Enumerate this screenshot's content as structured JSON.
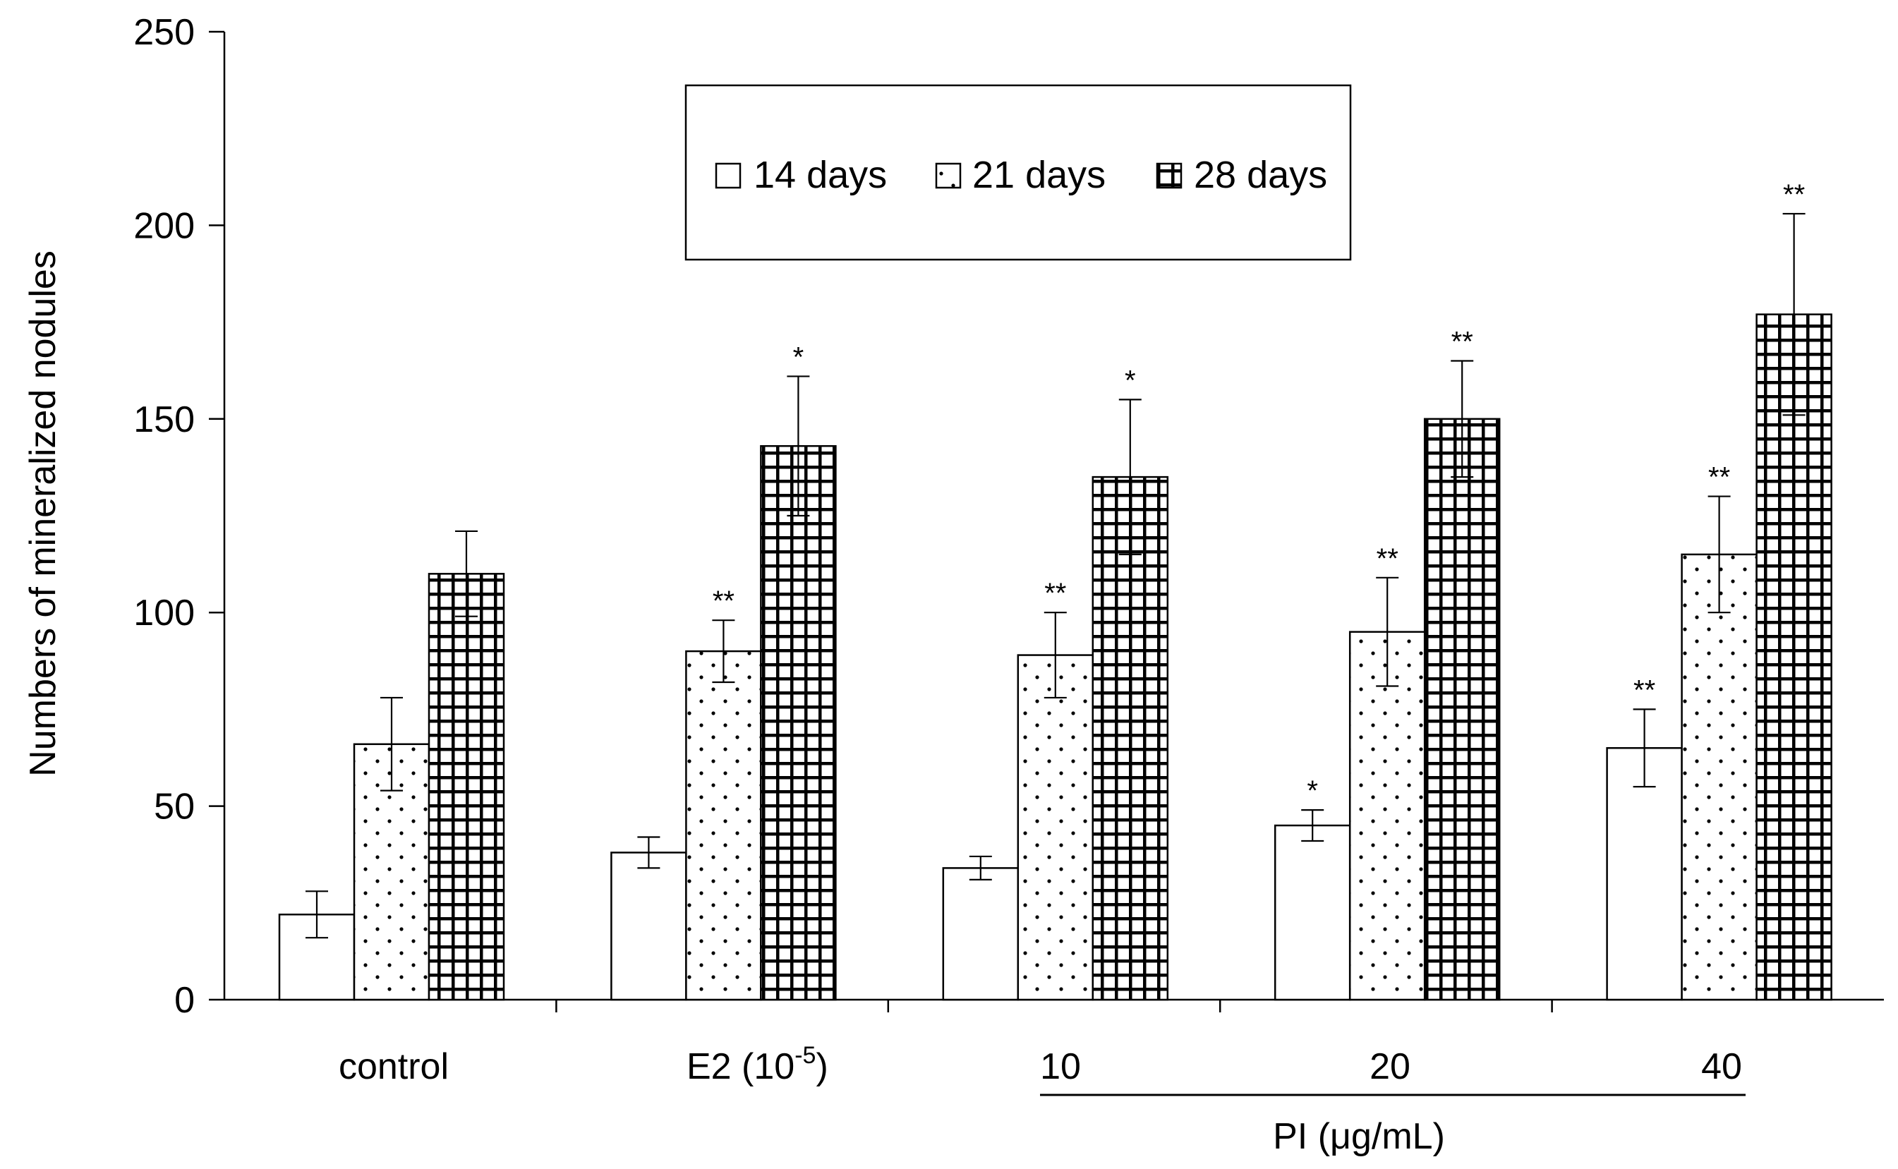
{
  "chart_data": {
    "type": "bar",
    "ylabel": "Numbers of  mineralized nodules",
    "ylim": [
      0,
      250
    ],
    "yticks": [
      0,
      50,
      100,
      150,
      200,
      250
    ],
    "categories": [
      "control",
      "E2 (10",
      "10",
      "20",
      "40"
    ],
    "e2_superscript": "-5",
    "e2_close": ")",
    "group_label": "PI (μg/mL)",
    "series": [
      {
        "name": "14 days",
        "pattern": "plain",
        "values": [
          22,
          38,
          34,
          45,
          65
        ],
        "errors": [
          6,
          4,
          3,
          4,
          10
        ],
        "significance": [
          "",
          "",
          "",
          "*",
          "**"
        ]
      },
      {
        "name": "21 days",
        "pattern": "dots",
        "values": [
          66,
          90,
          89,
          95,
          115
        ],
        "errors": [
          12,
          8,
          11,
          14,
          15
        ],
        "significance": [
          "",
          "**",
          "**",
          "**",
          "**"
        ]
      },
      {
        "name": "28 days",
        "pattern": "grid",
        "values": [
          110,
          143,
          135,
          150,
          177
        ],
        "errors": [
          11,
          18,
          20,
          15,
          26
        ],
        "significance": [
          "",
          "*",
          "*",
          "**",
          "**"
        ]
      }
    ]
  }
}
